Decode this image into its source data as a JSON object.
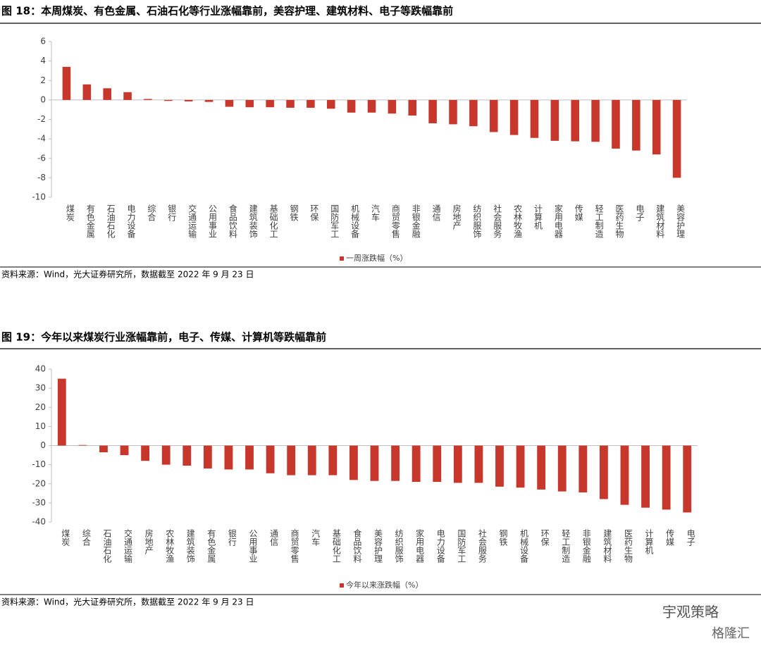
{
  "chart_data": [
    {
      "type": "bar",
      "title": "图 18：本周煤炭、有色金属、石油石化等行业涨幅靠前，美容护理、建筑材料、电子等跌幅靠前",
      "categories": [
        "煤炭",
        "有色金属",
        "石油石化",
        "电力设备",
        "综合",
        "银行",
        "交通运输",
        "公用事业",
        "食品饮料",
        "建筑装饰",
        "基础化工",
        "钢铁",
        "环保",
        "国防军工",
        "机械设备",
        "汽车",
        "商贸零售",
        "非银金融",
        "通信",
        "房地产",
        "纺织服饰",
        "社会服务",
        "农林牧渔",
        "计算机",
        "家用电器",
        "传媒",
        "轻工制造",
        "医药生物",
        "电子",
        "建筑材料",
        "美容护理"
      ],
      "series": [
        {
          "name": "一周涨跌幅（%）",
          "color": "#c7372b",
          "values": [
            3.4,
            1.6,
            1.2,
            0.8,
            0.1,
            -0.1,
            -0.15,
            -0.2,
            -0.7,
            -0.75,
            -0.75,
            -0.8,
            -0.8,
            -0.9,
            -1.3,
            -1.3,
            -1.4,
            -1.6,
            -2.4,
            -2.5,
            -2.7,
            -3.3,
            -3.6,
            -3.9,
            -4.2,
            -4.25,
            -4.3,
            -5.0,
            -5.2,
            -5.6,
            -8.0
          ]
        }
      ],
      "ylim": [
        -10,
        6
      ],
      "yticks": [
        -10,
        -8,
        -6,
        -4,
        -2,
        0,
        2,
        4,
        6
      ],
      "grid": false,
      "note": "资料来源：Wind，光大证券研究所，数据截至 2022 年 9 月 23 日"
    },
    {
      "type": "bar",
      "title": "图 19：今年以来煤炭行业涨幅靠前，电子、传媒、计算机等跌幅靠前",
      "categories": [
        "煤炭",
        "综合",
        "石油石化",
        "交通运输",
        "房地产",
        "农林牧渔",
        "建筑装饰",
        "有色金属",
        "银行",
        "公用事业",
        "通信",
        "商贸零售",
        "汽车",
        "基础化工",
        "食品饮料",
        "美容护理",
        "纺织服饰",
        "家用电器",
        "电力设备",
        "国防军工",
        "社会服务",
        "钢铁",
        "机械设备",
        "环保",
        "轻工制造",
        "非银金融",
        "建筑材料",
        "医药生物",
        "计算机",
        "传媒",
        "电子"
      ],
      "series": [
        {
          "name": "今年以来涨跌幅（%）",
          "color": "#c7372b",
          "values": [
            35,
            0.3,
            -3.5,
            -5,
            -8,
            -10,
            -10.5,
            -12,
            -12.5,
            -12.5,
            -14.5,
            -15.5,
            -15.5,
            -15.5,
            -18,
            -18.5,
            -18.5,
            -19,
            -19,
            -19.5,
            -19.5,
            -21.5,
            -22,
            -23,
            -24,
            -24.5,
            -28,
            -31,
            -32.5,
            -33.5,
            -35
          ]
        }
      ],
      "ylim": [
        -40,
        40
      ],
      "yticks": [
        -40,
        -30,
        -20,
        -10,
        0,
        10,
        20,
        30,
        40
      ],
      "grid": false,
      "note": "资料来源：Wind，光大证券研究所，数据截至 2022 年 9 月 23 日"
    }
  ],
  "watermark": [
    "宇观策略",
    "格隆汇"
  ]
}
